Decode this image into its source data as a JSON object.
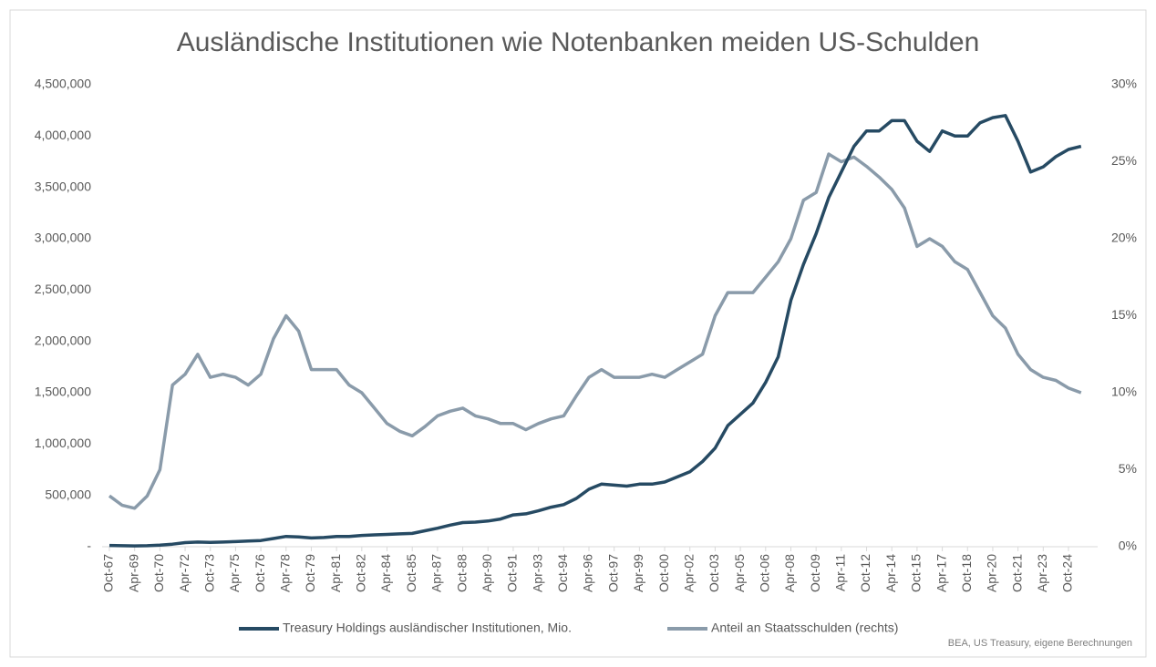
{
  "chart_data": {
    "type": "line",
    "title": "Ausländische Institutionen wie Notenbanken meiden US-Schulden",
    "source": "BEA, US Treasury, eigene Berechnungen",
    "categories": [
      "Oct-67",
      null,
      "Apr-69",
      null,
      "Oct-70",
      null,
      "Apr-72",
      null,
      "Oct-73",
      null,
      "Apr-75",
      null,
      "Oct-76",
      null,
      "Apr-78",
      null,
      "Oct-79",
      null,
      "Apr-81",
      null,
      "Oct-82",
      null,
      "Apr-84",
      null,
      "Oct-85",
      null,
      "Apr-87",
      null,
      "Oct-88",
      null,
      "Apr-90",
      null,
      "Oct-91",
      null,
      "Apr-93",
      null,
      "Oct-94",
      null,
      "Apr-96",
      null,
      "Oct-97",
      null,
      "Apr-99",
      null,
      "Oct-00",
      null,
      "Apr-02",
      null,
      "Oct-03",
      null,
      "Apr-05",
      null,
      "Oct-06",
      null,
      "Apr-08",
      null,
      "Oct-09",
      null,
      "Apr-11",
      null,
      "Oct-12",
      null,
      "Apr-14",
      null,
      "Oct-15",
      null,
      "Apr-17",
      null,
      "Oct-18",
      null,
      "Apr-20",
      null,
      "Oct-21",
      null,
      "Apr-23",
      null,
      "Oct-24",
      null
    ],
    "series": [
      {
        "name": "Treasury Holdings ausländischer Institutionen, Mio.",
        "color": "#264a63",
        "values": [
          12000,
          10000,
          8000,
          10000,
          15000,
          25000,
          40000,
          45000,
          42000,
          45000,
          50000,
          55000,
          60000,
          80000,
          100000,
          95000,
          85000,
          90000,
          100000,
          100000,
          110000,
          115000,
          120000,
          125000,
          130000,
          155000,
          180000,
          210000,
          235000,
          240000,
          250000,
          270000,
          310000,
          320000,
          350000,
          385000,
          410000,
          470000,
          560000,
          610000,
          600000,
          590000,
          610000,
          610000,
          630000,
          680000,
          730000,
          830000,
          960000,
          1180000,
          1290000,
          1400000,
          1600000,
          1850000,
          2400000,
          2750000,
          3050000,
          3400000,
          3650000,
          3900000,
          4050000,
          4050000,
          4150000,
          4150000,
          3950000,
          3850000,
          4050000,
          4000000,
          4000000,
          4130000,
          4180000,
          4200000,
          3950000,
          3650000,
          3700000,
          3800000,
          3870000,
          3900000
        ]
      },
      {
        "name": "Anteil an Staatsschulden (rechts)",
        "color": "#8a9baa",
        "axis": "y2",
        "values": [
          3.3,
          2.7,
          2.5,
          3.3,
          5.0,
          10.5,
          11.2,
          12.5,
          11.0,
          11.2,
          11.0,
          10.5,
          11.2,
          13.5,
          15.0,
          14.0,
          11.5,
          11.5,
          11.5,
          10.5,
          10.0,
          9.0,
          8.0,
          7.5,
          7.2,
          7.8,
          8.5,
          8.8,
          9.0,
          8.5,
          8.3,
          8.0,
          8.0,
          7.6,
          8.0,
          8.3,
          8.5,
          9.8,
          11.0,
          11.5,
          11.0,
          11.0,
          11.0,
          11.2,
          11.0,
          11.5,
          12.0,
          12.5,
          15.0,
          16.5,
          16.5,
          16.5,
          17.5,
          18.5,
          20.0,
          22.5,
          23.0,
          25.5,
          25.0,
          25.3,
          24.7,
          24.0,
          23.2,
          22.0,
          19.5,
          20.0,
          19.5,
          18.5,
          18.0,
          16.5,
          15.0,
          14.2,
          12.5,
          11.5,
          11.0,
          10.8,
          10.3,
          10.0
        ]
      }
    ],
    "ylim": [
      0,
      4500000
    ],
    "yticks": [
      {
        "value": 0,
        "label": "-"
      },
      {
        "value": 500000,
        "label": "500,000"
      },
      {
        "value": 1000000,
        "label": "1,000,000"
      },
      {
        "value": 1500000,
        "label": "1,500,000"
      },
      {
        "value": 2000000,
        "label": "2,000,000"
      },
      {
        "value": 2500000,
        "label": "2,500,000"
      },
      {
        "value": 3000000,
        "label": "3,000,000"
      },
      {
        "value": 3500000,
        "label": "3,500,000"
      },
      {
        "value": 4000000,
        "label": "4,000,000"
      },
      {
        "value": 4500000,
        "label": "4,500,000"
      }
    ],
    "y2lim": [
      0,
      30
    ],
    "y2ticks": [
      {
        "value": 0,
        "label": "0%"
      },
      {
        "value": 5,
        "label": "5%"
      },
      {
        "value": 10,
        "label": "10%"
      },
      {
        "value": 15,
        "label": "15%"
      },
      {
        "value": 20,
        "label": "20%"
      },
      {
        "value": 25,
        "label": "25%"
      },
      {
        "value": 30,
        "label": "30%"
      }
    ],
    "grid": false,
    "legend": "bottom"
  }
}
